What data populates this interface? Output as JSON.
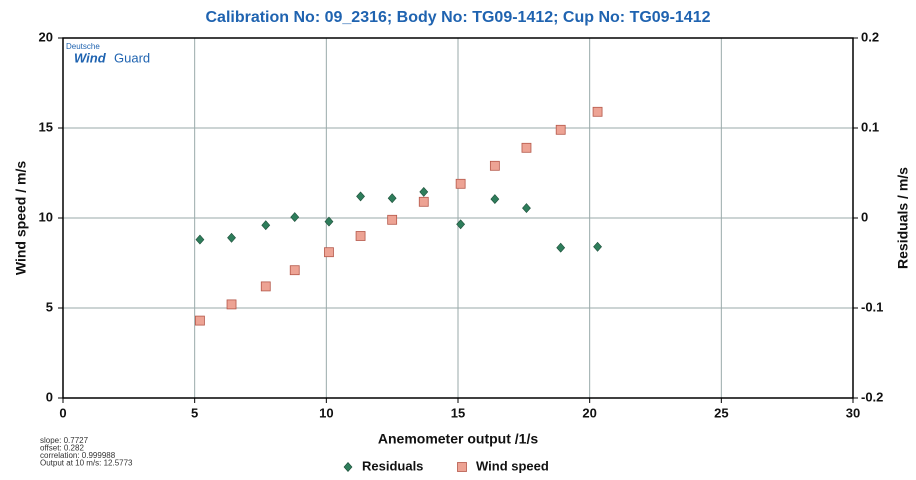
{
  "chart_data": {
    "type": "scatter",
    "title": "Calibration No: 09_2316; Body No: TG09-1412; Cup No: TG09-1412",
    "x_label": "Anemometer output /1/s",
    "y_label": "Wind speed / m/s",
    "y2_label": "Residuals / m/s",
    "logo": [
      "Deutsche",
      "Wind",
      "Guard"
    ],
    "annotations": [
      "slope: 0.7727",
      "offset: 0.282",
      "correlation: 0.999988",
      "Output at 10 m/s: 12.5773"
    ],
    "x": [
      5.2,
      6.4,
      7.7,
      8.8,
      10.1,
      11.3,
      12.5,
      13.7,
      15.1,
      16.4,
      17.6,
      18.9,
      20.3
    ],
    "series": [
      {
        "name": "Residuals",
        "color": "#2e7d5b",
        "marker": "diamond",
        "axis": "y2",
        "values": [
          -0.024,
          -0.022,
          -0.008,
          0.001,
          -0.004,
          0.024,
          0.022,
          0.029,
          -0.007,
          0.021,
          0.011,
          -0.033,
          -0.032
        ]
      },
      {
        "name": "Wind speed",
        "color": "#eda394",
        "marker": "square",
        "values": [
          4.3,
          5.2,
          6.2,
          7.1,
          8.1,
          9.0,
          9.9,
          10.9,
          11.9,
          12.9,
          13.9,
          14.9,
          15.9
        ]
      }
    ],
    "xlim": [
      0,
      30
    ],
    "xticks": [
      0,
      5,
      10,
      15,
      20,
      25,
      30
    ],
    "ylim": [
      0,
      20
    ],
    "yticks": [
      0,
      5,
      10,
      15,
      20
    ],
    "y2lim": [
      -0.2,
      0.2
    ],
    "y2ticks": [
      -0.2,
      -0.1,
      0,
      0.1,
      0.2
    ],
    "grid": true
  }
}
